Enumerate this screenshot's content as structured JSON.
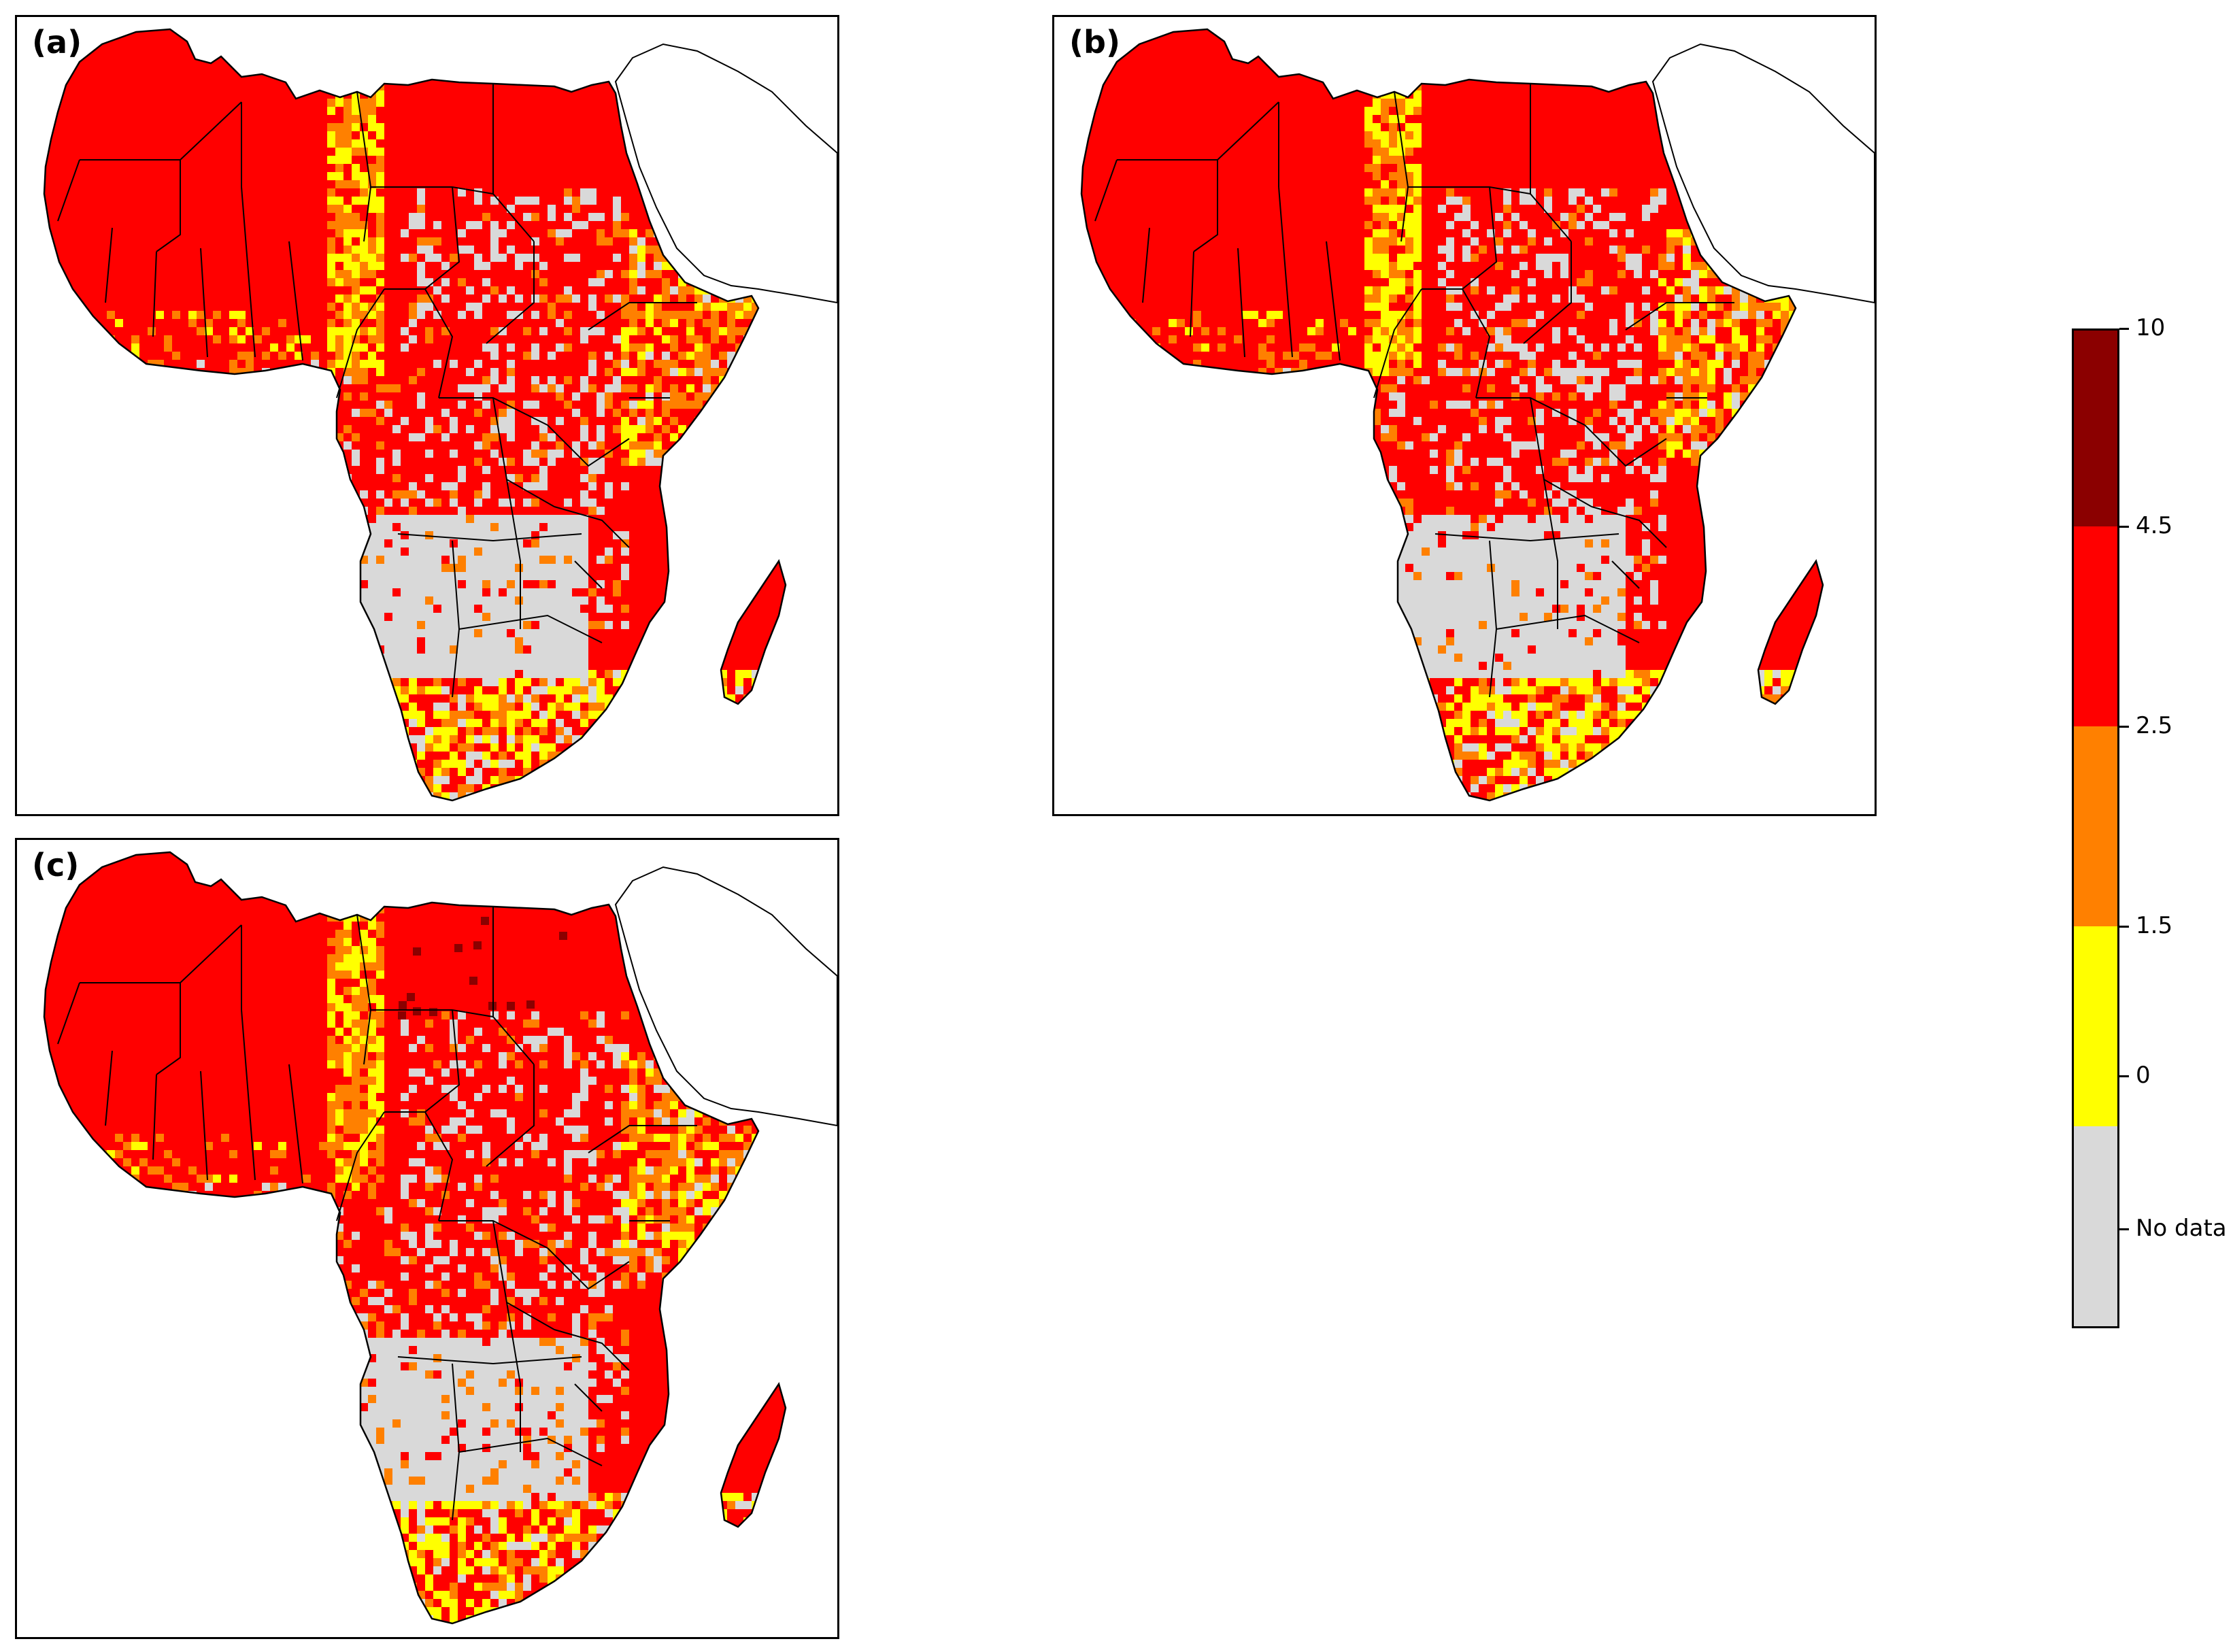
{
  "panels": [
    {
      "id": "a",
      "label": "(a)"
    },
    {
      "id": "b",
      "label": "(b)"
    },
    {
      "id": "c",
      "label": "(c)"
    }
  ],
  "colorbar": {
    "bins": [
      {
        "key": "nodata",
        "color": "#d9d9d9",
        "label": "No data"
      },
      {
        "key": "0-1.5",
        "color": "#ffff00",
        "label": "0"
      },
      {
        "key": "1.5-2.5",
        "color": "#ff8000",
        "label": "1.5"
      },
      {
        "key": "2.5-4.5",
        "color": "#ff0000",
        "label": "2.5"
      },
      {
        "key": "4.5-10",
        "color": "#8b0000",
        "label": "4.5"
      }
    ],
    "top_label": "10"
  },
  "colors": {
    "no_data": "#d9d9d9",
    "low": "#ffff00",
    "mid": "#ff8000",
    "high": "#ff0000",
    "very_high": "#8b0000",
    "border": "#000000"
  }
}
